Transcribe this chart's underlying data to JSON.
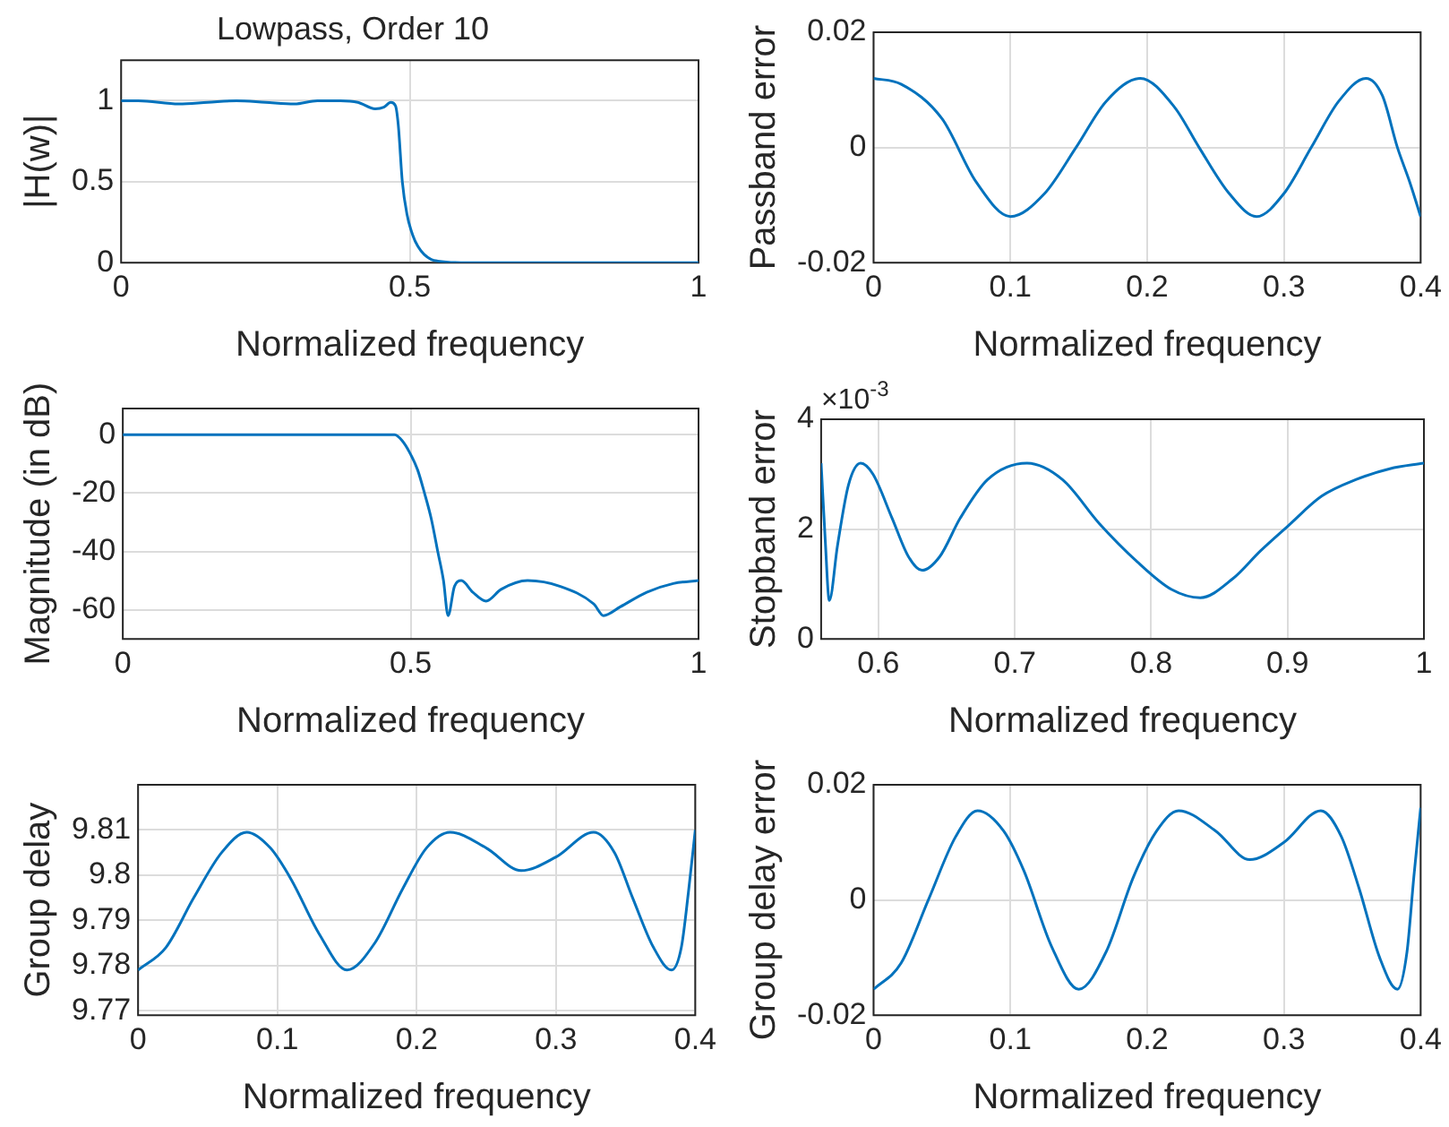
{
  "chart_data": [
    {
      "type": "line",
      "title": "Lowpass, Order 10",
      "xlabel": "Normalized frequency",
      "ylabel": "|H(w)|",
      "xlim": [
        0,
        1
      ],
      "ylim": [
        0,
        1.25
      ],
      "xticks": [
        0,
        0.5,
        1
      ],
      "yticks": [
        0,
        0.5,
        1
      ],
      "grid": true,
      "series": [
        {
          "color": "#0072bd",
          "x": [
            0,
            0.03,
            0.1,
            0.15,
            0.2,
            0.25,
            0.3,
            0.34,
            0.38,
            0.41,
            0.44,
            0.455,
            0.467,
            0.475,
            0.48,
            0.487,
            0.495,
            0.505,
            0.514,
            0.525,
            0.537,
            0.548,
            0.6,
            0.7,
            0.8,
            0.9,
            1
          ],
          "values": [
            1.0,
            1.0,
            0.98,
            0.99,
            1.0,
            0.99,
            0.98,
            1.0,
            1.0,
            0.99,
            0.95,
            0.96,
            0.99,
            0.97,
            0.85,
            0.5,
            0.3,
            0.17,
            0.1,
            0.05,
            0.02,
            0.01,
            0,
            0,
            0,
            0,
            0
          ]
        }
      ]
    },
    {
      "type": "line",
      "xlabel": "Normalized frequency",
      "ylabel": "Passband error",
      "xlim": [
        0,
        0.4
      ],
      "ylim": [
        -0.02,
        0.02
      ],
      "xticks": [
        0,
        0.1,
        0.2,
        0.3,
        0.4
      ],
      "yticks": [
        -0.02,
        0,
        0.02
      ],
      "grid": true,
      "series": [
        {
          "color": "#0072bd",
          "x": [
            0,
            0.02,
            0.05,
            0.075,
            0.1,
            0.125,
            0.148,
            0.17,
            0.195,
            0.22,
            0.238,
            0.26,
            0.28,
            0.3,
            0.32,
            0.34,
            0.36,
            0.372,
            0.383,
            0.392,
            0.4
          ],
          "values": [
            0.012,
            0.011,
            0.005,
            -0.006,
            -0.012,
            -0.008,
            0,
            0.008,
            0.012,
            0.007,
            0,
            -0.008,
            -0.012,
            -0.008,
            0,
            0.008,
            0.012,
            0.009,
            0,
            -0.006,
            -0.012
          ]
        }
      ]
    },
    {
      "type": "line",
      "xlabel": "Normalized frequency",
      "ylabel": "Magnitude (in dB)",
      "xlim": [
        0,
        1
      ],
      "ylim": [
        -70,
        9
      ],
      "xticks": [
        0,
        0.5,
        1
      ],
      "yticks": [
        -60,
        -40,
        -20,
        0
      ],
      "grid": true,
      "series": [
        {
          "color": "#0072bd",
          "x": [
            0,
            0.1,
            0.2,
            0.3,
            0.4,
            0.472,
            0.485,
            0.498,
            0.512,
            0.524,
            0.536,
            0.547,
            0.557,
            0.565,
            0.576,
            0.588,
            0.608,
            0.631,
            0.657,
            0.703,
            0.76,
            0.818,
            0.835,
            0.864,
            0.91,
            0.956,
            1
          ],
          "values": [
            0,
            0,
            0,
            0,
            0,
            0,
            -2,
            -6,
            -12,
            -20,
            -29,
            -40,
            -50,
            -62,
            -52,
            -50,
            -54,
            -57,
            -53,
            -50,
            -52,
            -58,
            -62,
            -59,
            -54,
            -51,
            -50
          ]
        }
      ]
    },
    {
      "type": "line",
      "xlabel": "Normalized frequency",
      "ylabel": "Stopband error",
      "annotations": [
        "×10$^{-3}$"
      ],
      "xlim": [
        0.558,
        1
      ],
      "ylim": [
        0,
        4
      ],
      "xticks": [
        0.6,
        0.7,
        0.8,
        0.9,
        1
      ],
      "yticks": [
        0,
        2,
        4
      ],
      "grid": true,
      "series": [
        {
          "color": "#0072bd",
          "x": [
            0.558,
            0.561,
            0.564,
            0.57,
            0.578,
            0.587,
            0.596,
            0.61,
            0.622,
            0.632,
            0.645,
            0.66,
            0.68,
            0.709,
            0.735,
            0.762,
            0.79,
            0.815,
            0.836,
            0.86,
            0.88,
            0.9,
            0.925,
            0.95,
            0.975,
            1
          ],
          "values": [
            3.2,
            1.8,
            0.7,
            1.7,
            2.8,
            3.2,
            3.0,
            2.2,
            1.5,
            1.25,
            1.5,
            2.2,
            2.9,
            3.2,
            2.9,
            2.1,
            1.4,
            0.9,
            0.75,
            1.1,
            1.6,
            2.05,
            2.6,
            2.9,
            3.1,
            3.2
          ]
        }
      ]
    },
    {
      "type": "line",
      "xlabel": "Normalized frequency",
      "ylabel": "Group delay",
      "xlim": [
        0,
        0.4
      ],
      "ylim": [
        9.769,
        9.82
      ],
      "xticks": [
        0,
        0.1,
        0.2,
        0.3,
        0.4
      ],
      "yticks": [
        9.77,
        9.78,
        9.79,
        9.8,
        9.81
      ],
      "grid": true,
      "series": [
        {
          "color": "#0072bd",
          "x": [
            0,
            0.02,
            0.04,
            0.06,
            0.078,
            0.095,
            0.11,
            0.13,
            0.15,
            0.17,
            0.19,
            0.207,
            0.224,
            0.25,
            0.275,
            0.3,
            0.327,
            0.342,
            0.355,
            0.37,
            0.383,
            0.39,
            0.395,
            0.4
          ],
          "values": [
            9.779,
            9.784,
            9.795,
            9.805,
            9.8095,
            9.806,
            9.799,
            9.787,
            9.779,
            9.785,
            9.797,
            9.806,
            9.8095,
            9.806,
            9.801,
            9.804,
            9.8095,
            9.805,
            9.795,
            9.784,
            9.779,
            9.784,
            9.796,
            9.81
          ]
        }
      ]
    },
    {
      "type": "line",
      "xlabel": "Normalized frequency",
      "ylabel": "Group delay error",
      "xlim": [
        0,
        0.4
      ],
      "ylim": [
        -0.02,
        0.02
      ],
      "xticks": [
        0,
        0.1,
        0.2,
        0.3,
        0.4
      ],
      "yticks": [
        -0.02,
        0,
        0.02
      ],
      "grid": true,
      "series": [
        {
          "color": "#0072bd",
          "x": [
            0,
            0.02,
            0.04,
            0.06,
            0.076,
            0.095,
            0.11,
            0.13,
            0.15,
            0.17,
            0.19,
            0.207,
            0.223,
            0.25,
            0.275,
            0.3,
            0.327,
            0.342,
            0.355,
            0.37,
            0.383,
            0.39,
            0.395,
            0.4
          ],
          "values": [
            -0.0155,
            -0.011,
            0,
            0.011,
            0.0155,
            0.012,
            0.005,
            -0.008,
            -0.0155,
            -0.009,
            0.004,
            0.012,
            0.0155,
            0.012,
            0.007,
            0.01,
            0.0155,
            0.011,
            0.002,
            -0.01,
            -0.0155,
            -0.009,
            0.004,
            0.016
          ]
        }
      ]
    }
  ]
}
